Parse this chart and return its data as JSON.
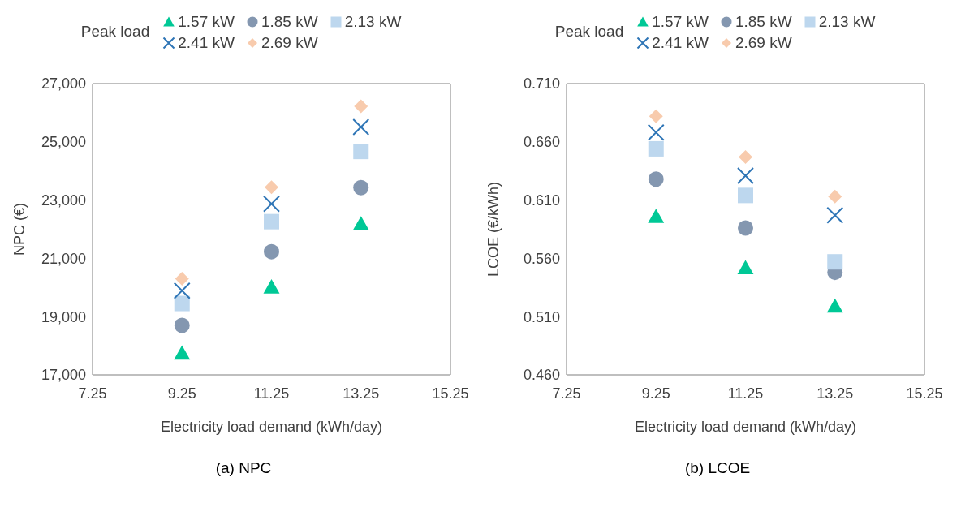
{
  "chart_data": [
    {
      "type": "scatter",
      "title": "(a) NPC",
      "xlabel": "Electricity load demand (kWh/day)",
      "ylabel": "NPC (€)",
      "legend_title": "Peak load",
      "legend": "top",
      "grid": false,
      "x": [
        9.25,
        11.25,
        13.25
      ],
      "xlim": [
        7.25,
        15.25
      ],
      "xticks": [
        7.25,
        9.25,
        11.25,
        13.25,
        15.25
      ],
      "ylim": [
        17000,
        27000
      ],
      "yticks": [
        {
          "value": 17000,
          "label": "17,000"
        },
        {
          "value": 19000,
          "label": "19,000"
        },
        {
          "value": 21000,
          "label": "21,000"
        },
        {
          "value": 23000,
          "label": "23,000"
        },
        {
          "value": 25000,
          "label": "25,000"
        },
        {
          "value": 27000,
          "label": "27,000"
        }
      ],
      "series": [
        {
          "name": "1.57 kW",
          "color": "#00c896",
          "marker": "triangle",
          "values": [
            17750,
            20020,
            22190
          ]
        },
        {
          "name": "1.85 kW",
          "color": "#8497b0",
          "marker": "circle",
          "values": [
            18700,
            21230,
            23430
          ]
        },
        {
          "name": "2.13 kW",
          "color": "#bdd7ee",
          "marker": "square",
          "values": [
            19450,
            22260,
            24670
          ]
        },
        {
          "name": "2.41 kW",
          "color": "#2e75b6",
          "marker": "cross",
          "values": [
            19890,
            22870,
            25510
          ]
        },
        {
          "name": "2.69 kW",
          "color": "#f8cbad",
          "marker": "diamond",
          "values": [
            20300,
            23440,
            26220
          ]
        }
      ]
    },
    {
      "type": "scatter",
      "title": "(b) LCOE",
      "xlabel": "Electricity load demand (kWh/day)",
      "ylabel": "LCOE (€/kWh)",
      "legend_title": "Peak load",
      "legend": "top",
      "grid": false,
      "x": [
        9.25,
        11.25,
        13.25
      ],
      "xlim": [
        7.25,
        15.25
      ],
      "xticks": [
        7.25,
        9.25,
        11.25,
        13.25,
        15.25
      ],
      "ylim": [
        0.46,
        0.71
      ],
      "yticks": [
        {
          "value": 0.46,
          "label": "0.460"
        },
        {
          "value": 0.51,
          "label": "0.510"
        },
        {
          "value": 0.56,
          "label": "0.560"
        },
        {
          "value": 0.61,
          "label": "0.610"
        },
        {
          "value": 0.66,
          "label": "0.660"
        },
        {
          "value": 0.71,
          "label": "0.710"
        }
      ],
      "series": [
        {
          "name": "1.57 kW",
          "color": "#00c896",
          "marker": "triangle",
          "values": [
            0.596,
            0.552,
            0.519
          ]
        },
        {
          "name": "1.85 kW",
          "color": "#8497b0",
          "marker": "circle",
          "values": [
            0.628,
            0.586,
            0.548
          ]
        },
        {
          "name": "2.13 kW",
          "color": "#bdd7ee",
          "marker": "square",
          "values": [
            0.654,
            0.614,
            0.557
          ]
        },
        {
          "name": "2.41 kW",
          "color": "#2e75b6",
          "marker": "cross",
          "values": [
            0.668,
            0.631,
            0.597
          ]
        },
        {
          "name": "2.69 kW",
          "color": "#f8cbad",
          "marker": "diamond",
          "values": [
            0.682,
            0.647,
            0.613
          ]
        }
      ]
    }
  ]
}
